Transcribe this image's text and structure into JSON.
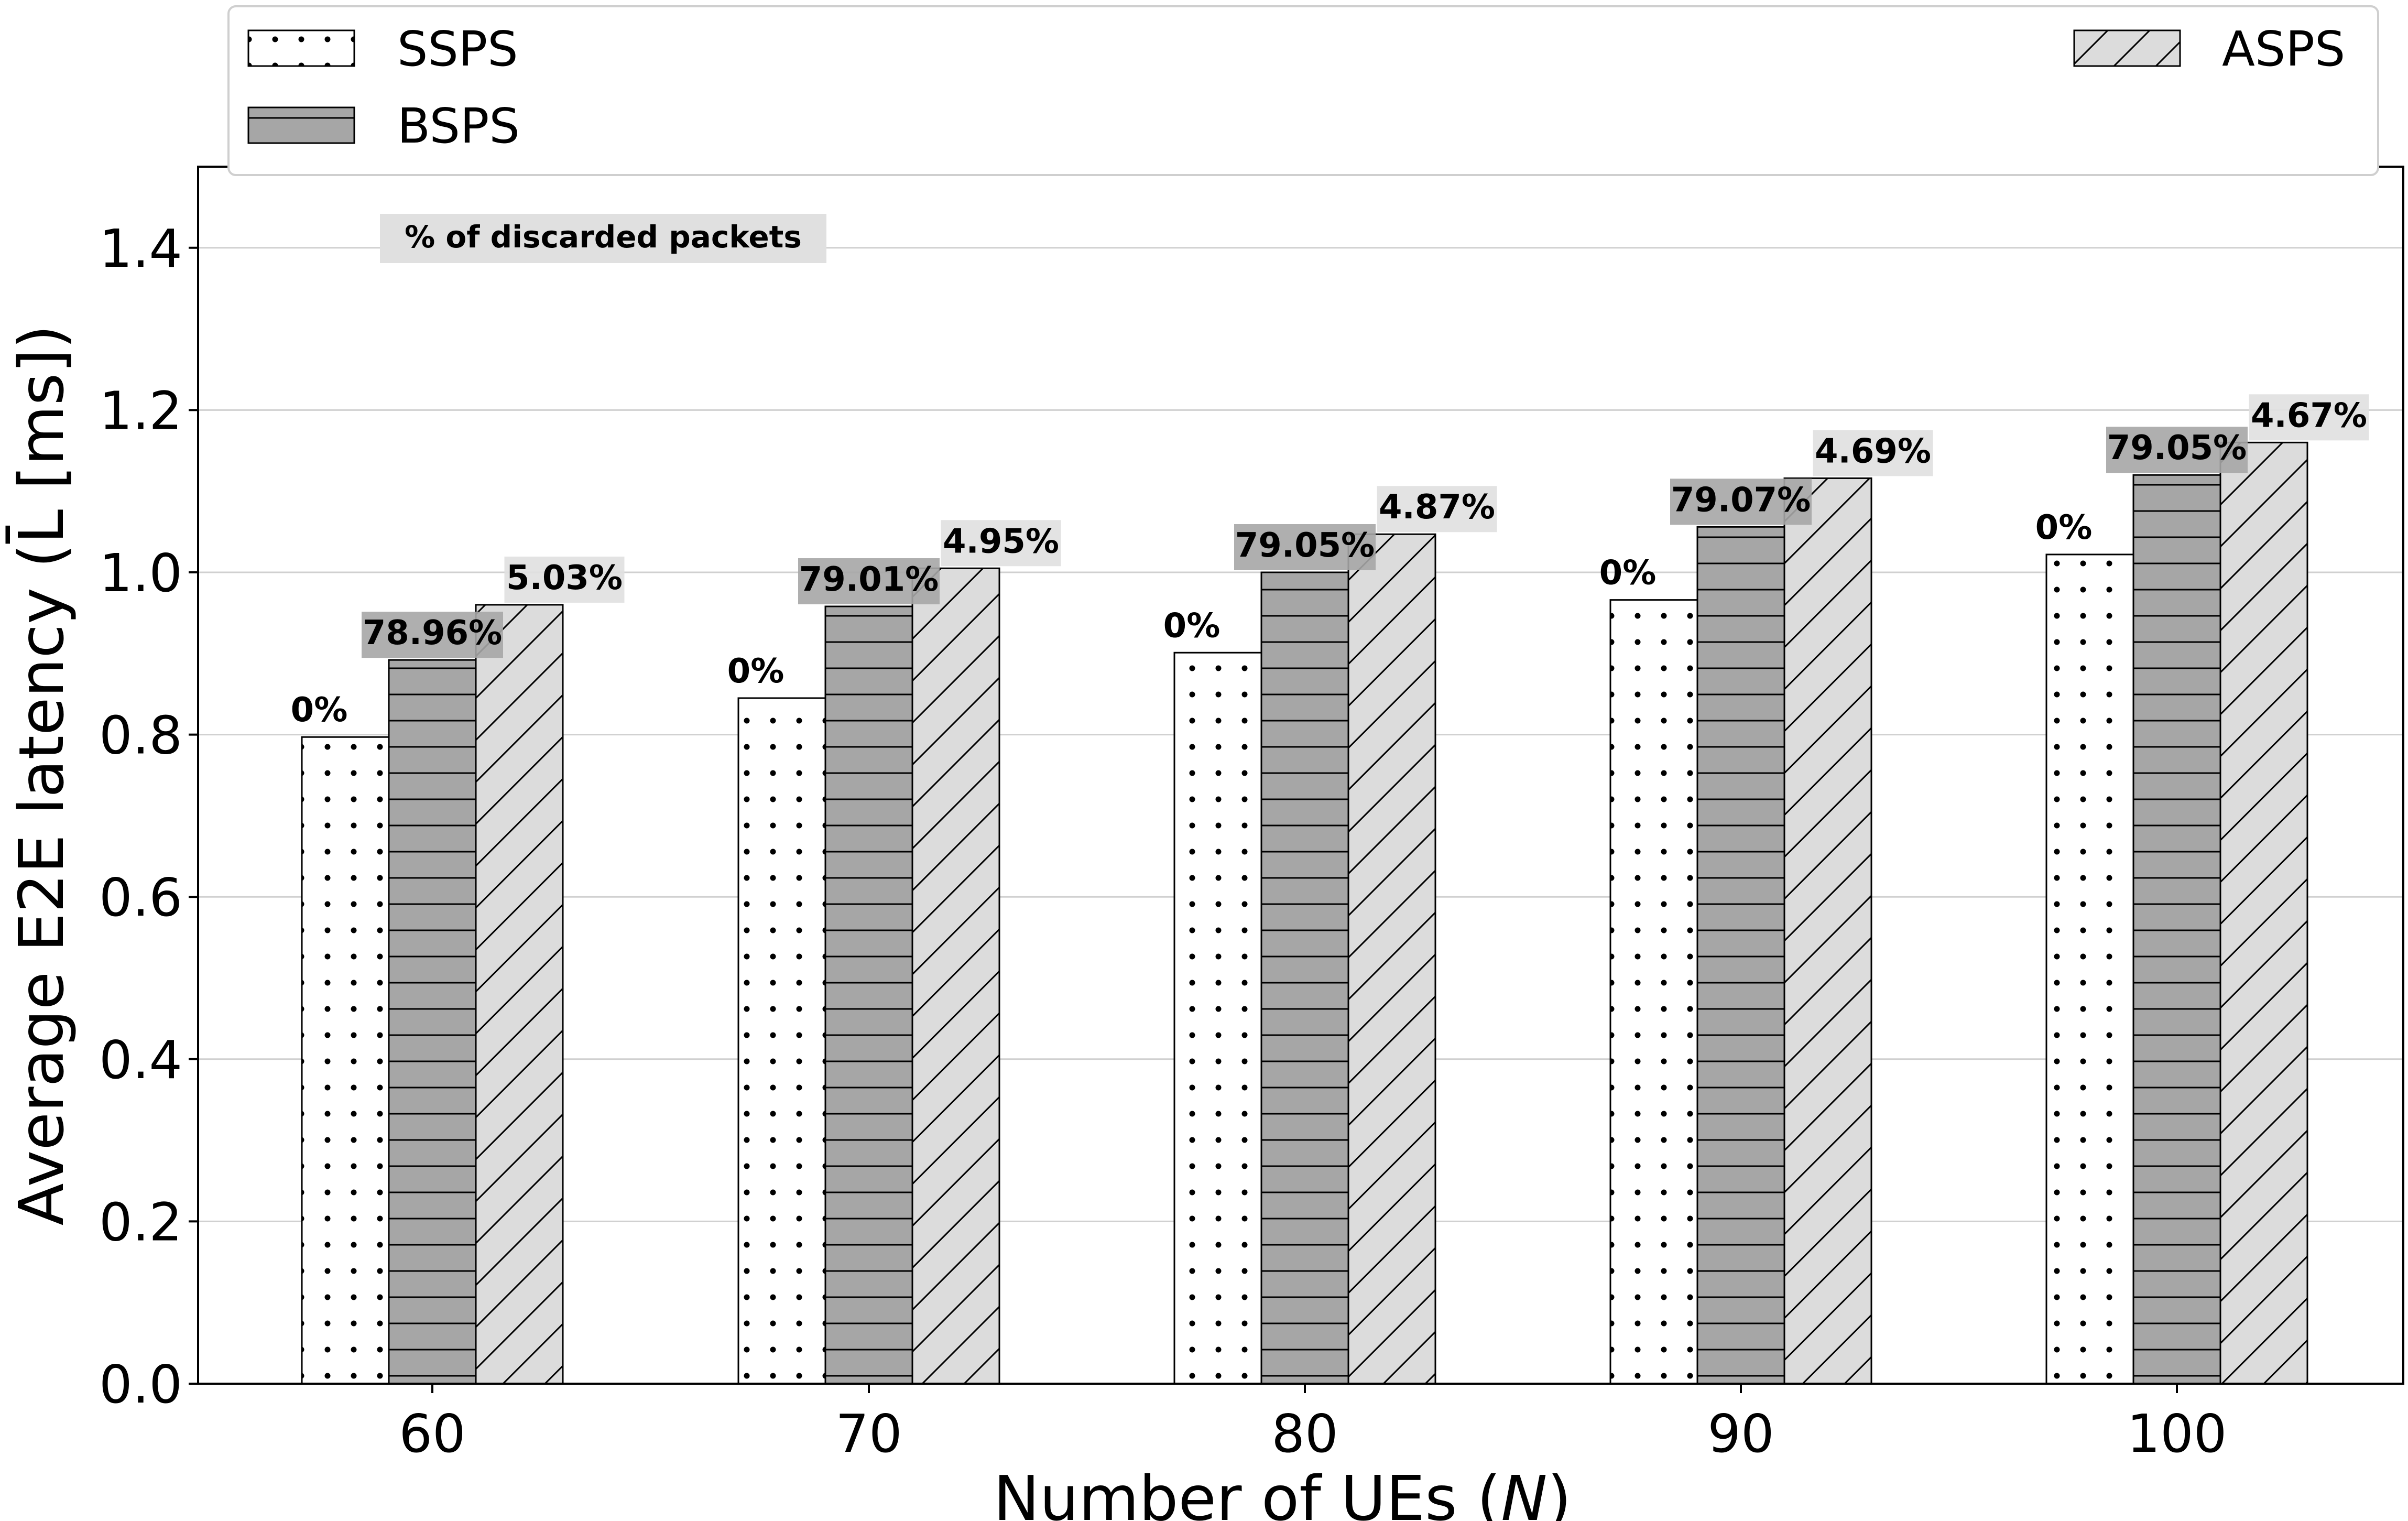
{
  "chart_data": {
    "type": "bar",
    "title": "",
    "xlabel_prefix": "Number of UEs (",
    "xlabel_var": "N",
    "xlabel_suffix": ")",
    "ylabel": "Average E2E latency (L̄ [ms])",
    "categories": [
      "60",
      "70",
      "80",
      "90",
      "100"
    ],
    "ylim": [
      0,
      1.5
    ],
    "yticks": [
      0.0,
      0.2,
      0.4,
      0.6,
      0.8,
      1.0,
      1.2,
      1.4
    ],
    "ytick_labels": [
      "0.0",
      "0.2",
      "0.4",
      "0.6",
      "0.8",
      "1.0",
      "1.2",
      "1.4"
    ],
    "grid": true,
    "annotation": "% of discarded packets",
    "legend_position": "top",
    "series": [
      {
        "name": "SSPS",
        "pattern": "dots",
        "color": "#ffffff",
        "values": [
          0.797,
          0.845,
          0.901,
          0.966,
          1.022
        ],
        "labels": [
          "0%",
          "0%",
          "0%",
          "0%",
          "0%"
        ]
      },
      {
        "name": "BSPS",
        "pattern": "horizontal",
        "color": "#a6a6a6",
        "values": [
          0.892,
          0.958,
          1.0,
          1.056,
          1.12
        ],
        "labels": [
          "78.96%",
          "79.01%",
          "79.05%",
          "79.07%",
          "79.05%"
        ]
      },
      {
        "name": "ASPS",
        "pattern": "diagonal",
        "color": "#dcdcdc",
        "values": [
          0.96,
          1.005,
          1.047,
          1.116,
          1.16
        ],
        "labels": [
          "5.03%",
          "4.95%",
          "4.87%",
          "4.69%",
          "4.67%"
        ]
      }
    ]
  }
}
